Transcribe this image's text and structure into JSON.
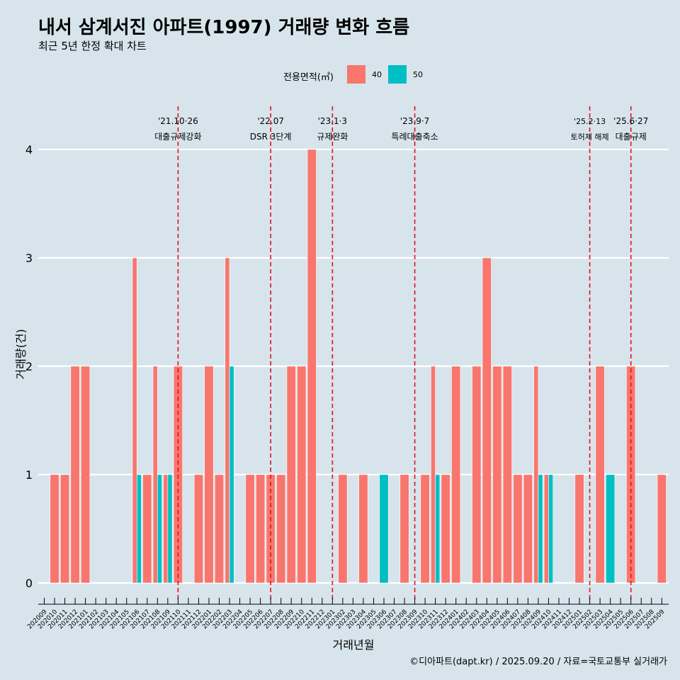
{
  "header": {
    "title": "내서 삼계서진 아파트(1997) 거래량 변화 흐름",
    "subtitle": "최근 5년 한정 확대 차트"
  },
  "legend": {
    "title": "전용면적(㎡)",
    "items": [
      {
        "label": "40",
        "color": "#f8766d"
      },
      {
        "label": "50",
        "color": "#00bfc4"
      }
    ]
  },
  "footer": {
    "caption": "©디아파트(dapt.kr) / 2025.09.20 / 자료=국토교통부 실거래가"
  },
  "chart_data": {
    "type": "bar",
    "xlabel": "거래년월",
    "ylabel": "거래량(건)",
    "ylim": [
      0,
      4
    ],
    "yticks": [
      0,
      1,
      2,
      3,
      4
    ],
    "grid": "horizontal",
    "legend_position": "top",
    "categories": [
      "202009",
      "202010",
      "202011",
      "202012",
      "202101",
      "202102",
      "202103",
      "202104",
      "202105",
      "202106",
      "202107",
      "202108",
      "202109",
      "202110",
      "202111",
      "202112",
      "202201",
      "202202",
      "202203",
      "202204",
      "202205",
      "202206",
      "202207",
      "202208",
      "202209",
      "202210",
      "202211",
      "202212",
      "202301",
      "202302",
      "202303",
      "202304",
      "202305",
      "202306",
      "202307",
      "202308",
      "202309",
      "202310",
      "202311",
      "202312",
      "202401",
      "202402",
      "202403",
      "202404",
      "202405",
      "202406",
      "202407",
      "202408",
      "202409",
      "202410",
      "202411",
      "202412",
      "202501",
      "202502",
      "202503",
      "202504",
      "202505",
      "202506",
      "202507",
      "202508",
      "202509"
    ],
    "series": [
      {
        "name": "40",
        "color": "#f8766d",
        "values": [
          0,
          1,
          1,
          2,
          2,
          0,
          0,
          0,
          0,
          3,
          1,
          2,
          1,
          2,
          0,
          1,
          2,
          1,
          3,
          0,
          1,
          1,
          1,
          1,
          2,
          2,
          4,
          0,
          0,
          1,
          0,
          1,
          0,
          0,
          0,
          1,
          0,
          1,
          2,
          1,
          2,
          0,
          2,
          3,
          2,
          2,
          1,
          1,
          2,
          1,
          0,
          0,
          1,
          0,
          2,
          0,
          0,
          2,
          0,
          0,
          1
        ]
      },
      {
        "name": "50",
        "color": "#00bfc4",
        "values": [
          0,
          0,
          0,
          0,
          0,
          0,
          0,
          0,
          0,
          1,
          0,
          1,
          1,
          0,
          0,
          0,
          0,
          0,
          2,
          0,
          0,
          0,
          0,
          0,
          0,
          0,
          0,
          0,
          0,
          0,
          0,
          0,
          0,
          1,
          0,
          0,
          0,
          0,
          1,
          0,
          0,
          0,
          0,
          0,
          0,
          0,
          0,
          0,
          1,
          1,
          0,
          0,
          0,
          0,
          0,
          1,
          0,
          0,
          0,
          0,
          0
        ]
      }
    ],
    "annotations": [
      {
        "x": "202110",
        "date": "'21.10·26",
        "label": "대출규제강화"
      },
      {
        "x": "202207",
        "date": "'22.07",
        "label": "DSR 3단계"
      },
      {
        "x": "202301",
        "date": "'23.1·3",
        "label": "규제완화"
      },
      {
        "x": "202309",
        "date": "'23.9·7",
        "label": "특례대출축소"
      },
      {
        "x": "202502",
        "date": "'25.2·13",
        "label": "토허제 해제"
      },
      {
        "x": "202506",
        "date": "'25.6·27",
        "label": "대출규제"
      }
    ]
  }
}
